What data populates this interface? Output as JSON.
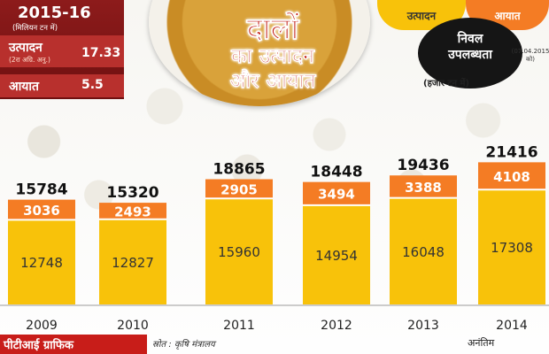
{
  "info_box": {
    "year": "2015-16",
    "unit": "(मिलियन टन में)",
    "production_label": "उत्पादन",
    "production_note": "(2रा अग्रि. अनु.)",
    "production_value": "17.33",
    "import_label": "आयात",
    "import_value": "5.5"
  },
  "title": {
    "line1": "दालों",
    "line2": "का उत्पादन",
    "line3": "और आयात"
  },
  "legend": {
    "production": "उत्पादन",
    "import": "आयात",
    "net_line1": "निवल",
    "net_line2": "उपलब्धता",
    "net_note": "(07.04.2015 को)",
    "unit": "(हजार टन में)"
  },
  "footer": {
    "credit": "पीटीआई ग्राफिक",
    "source": "स्रोत : कृषि मंत्रालय",
    "provisional": "अनंतिम"
  },
  "colors": {
    "production": "#f8c20a",
    "import": "#f47c24",
    "accent_red": "#c81d19"
  },
  "chart_data": {
    "type": "bar",
    "stacked": true,
    "categories": [
      "2009",
      "2010",
      "2011",
      "2012",
      "2013",
      "2014"
    ],
    "series": [
      {
        "name": "उत्पादन",
        "values": [
          12748,
          12827,
          15960,
          14954,
          16048,
          17308
        ]
      },
      {
        "name": "आयात",
        "values": [
          3036,
          2493,
          2905,
          3494,
          3388,
          4108
        ]
      }
    ],
    "totals": [
      15784,
      15320,
      18865,
      18448,
      19436,
      21416
    ],
    "title": "दालों का उत्पादन और आयात",
    "ylabel": "(हजार टन में)",
    "legend_position": "top-right",
    "grid": false
  }
}
